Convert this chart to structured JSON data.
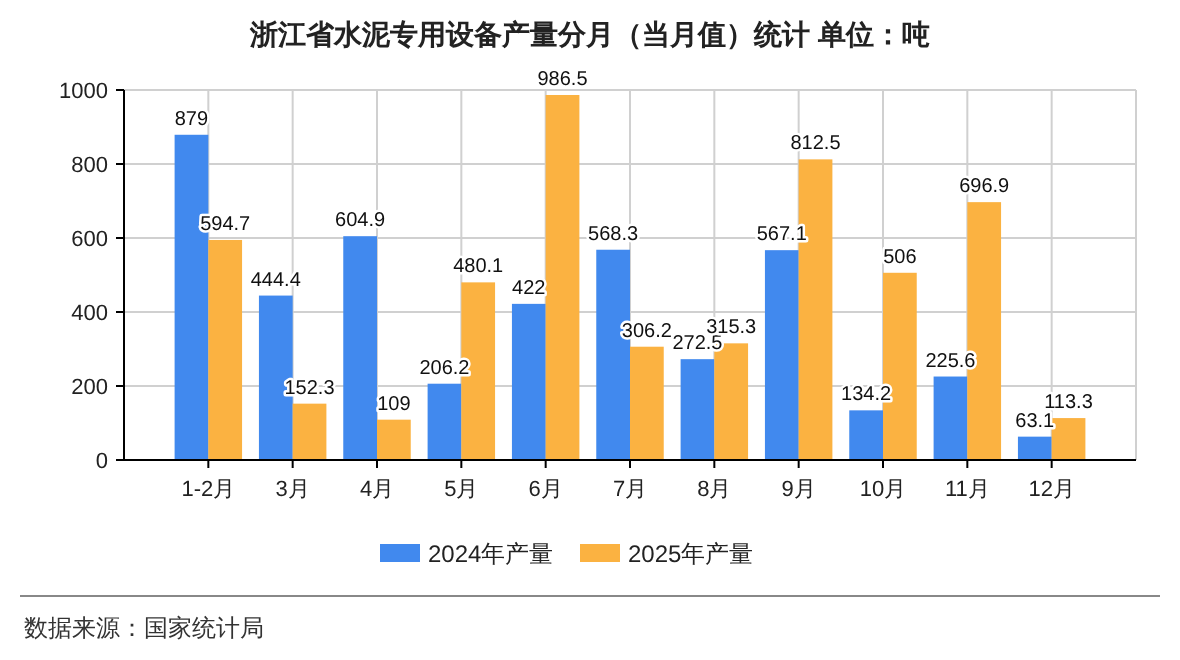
{
  "chart_data": {
    "type": "bar",
    "title": "浙江省水泥专用设备产量分月（当月值）统计  单位：吨",
    "categories": [
      "1-2月",
      "3月",
      "4月",
      "5月",
      "6月",
      "7月",
      "8月",
      "9月",
      "10月",
      "11月",
      "12月"
    ],
    "series": [
      {
        "name": "2024年产量",
        "color": "#4189ee",
        "values": [
          879,
          444.4,
          604.9,
          206.2,
          422,
          568.3,
          272.5,
          567.1,
          134.2,
          225.6,
          63.1
        ]
      },
      {
        "name": "2025年产量",
        "color": "#fbb241",
        "values": [
          594.7,
          152.3,
          109,
          480.1,
          986.5,
          306.2,
          315.3,
          812.5,
          506,
          696.9,
          113.3
        ]
      }
    ],
    "ylim": [
      0,
      1000
    ],
    "yticks": [
      0,
      200,
      400,
      600,
      800,
      1000
    ],
    "grid": true,
    "legend": "bottom",
    "data_labels": true,
    "annotations": [
      "数据来源：国家统计局"
    ]
  }
}
